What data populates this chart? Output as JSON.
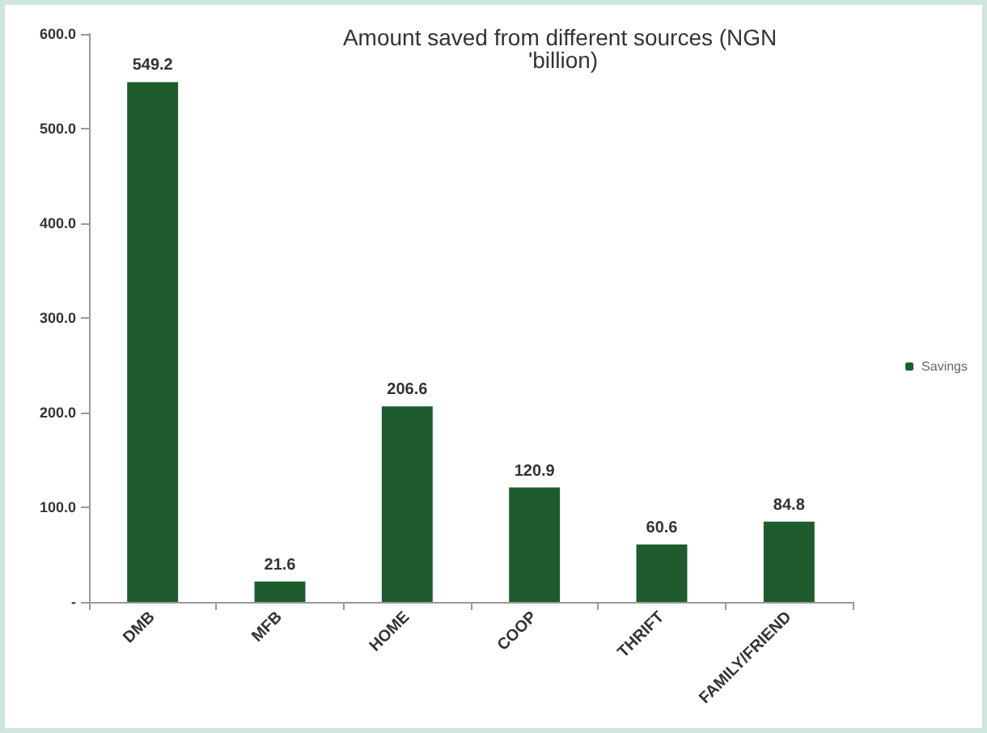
{
  "chart_data": {
    "type": "bar",
    "title": "Amount saved from different sources (NGN 'billion)",
    "categories": [
      "DMB",
      "MFB",
      "HOME",
      "COOP",
      "THRIFT",
      "FAMILY/FRIEND"
    ],
    "series": [
      {
        "name": "Savings",
        "color": "#1e5c2e",
        "values": [
          549.2,
          21.6,
          206.6,
          120.9,
          60.6,
          84.8
        ]
      }
    ],
    "data_labels": true,
    "ylim": [
      0,
      600
    ],
    "yticks": [
      {
        "value": 0,
        "label": "-"
      },
      {
        "value": 100,
        "label": "100.0"
      },
      {
        "value": 200,
        "label": "200.0"
      },
      {
        "value": 300,
        "label": "300.0"
      },
      {
        "value": 400,
        "label": "400.0"
      },
      {
        "value": 500,
        "label": "500.0"
      },
      {
        "value": 600,
        "label": "600.0"
      }
    ],
    "legend": "right"
  }
}
